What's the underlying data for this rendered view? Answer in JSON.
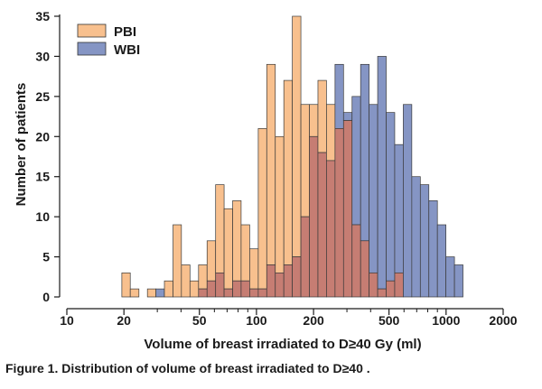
{
  "caption": "Figure 1. Distribution of volume of breast irradiated to D≥40 .",
  "chart_data": {
    "type": "bar",
    "title": "",
    "xlabel": "Volume of breast irradiated to D≥40 Gy (ml)",
    "ylabel": "Number of patients",
    "x_scale": "log",
    "xlim": [
      10,
      2000
    ],
    "ylim": [
      0,
      35
    ],
    "x_ticks": [
      10,
      20,
      50,
      100,
      200,
      500,
      1000,
      2000
    ],
    "x_tick_labels": [
      "10",
      "20",
      "50",
      "100",
      "200",
      "500",
      "1000",
      "2000"
    ],
    "y_ticks": [
      0,
      5,
      10,
      15,
      20,
      25,
      30,
      35
    ],
    "y_tick_labels": [
      "0",
      "5",
      "10",
      "15",
      "20",
      "25",
      "30",
      "35"
    ],
    "legend_placement": "top-left",
    "grid": false,
    "bin_edges": [
      19.5,
      21.6,
      24.0,
      26.6,
      29.5,
      32.7,
      36.3,
      40.2,
      44.6,
      49.5,
      54.9,
      60.9,
      67.5,
      74.9,
      83.0,
      92.1,
      102.2,
      113.3,
      125.7,
      139.4,
      154.6,
      171.5,
      190.2,
      211.0,
      234.0,
      259.6,
      287.9,
      319.3,
      354.2,
      392.8,
      435.7,
      483.3,
      536.0,
      594.6,
      659.5,
      731.5,
      811.3,
      899.9,
      998.2,
      1107.2,
      1228.0
    ],
    "series": [
      {
        "name": "PBI",
        "color": "#f8c08e",
        "values": [
          3,
          1,
          0,
          1,
          0,
          2,
          9,
          4,
          2,
          4,
          7,
          14,
          11,
          12,
          9,
          6,
          21,
          29,
          20,
          27,
          35,
          24,
          24,
          27,
          24,
          21,
          22,
          9,
          7,
          3,
          1,
          2,
          3,
          0,
          0,
          0,
          0,
          0,
          0,
          0
        ]
      },
      {
        "name": "WBI",
        "color": "#8595c4",
        "values": [
          0,
          0,
          0,
          0,
          1,
          0,
          0,
          0,
          0,
          1,
          2,
          3,
          1,
          2,
          2,
          1,
          1,
          4,
          3,
          4,
          5,
          10,
          20,
          18,
          17,
          29,
          23,
          25,
          29,
          24,
          30,
          23,
          19,
          24,
          15,
          14,
          12,
          9,
          5,
          4
        ]
      }
    ]
  }
}
